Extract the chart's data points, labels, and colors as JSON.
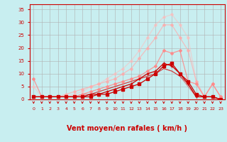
{
  "background_color": "#c8eef0",
  "grid_color": "#b0b0b0",
  "xlabel": "Vent moyen/en rafales ( km/h )",
  "xlabel_color": "#cc0000",
  "xlabel_fontsize": 7,
  "tick_color": "#cc0000",
  "xlim": [
    -0.5,
    23.5
  ],
  "ylim": [
    0,
    37
  ],
  "yticks": [
    0,
    5,
    10,
    15,
    20,
    25,
    30,
    35
  ],
  "xticks": [
    0,
    1,
    2,
    3,
    4,
    5,
    6,
    7,
    8,
    9,
    10,
    11,
    12,
    13,
    14,
    15,
    16,
    17,
    18,
    19,
    20,
    21,
    22,
    23
  ],
  "lines": [
    {
      "x": [
        0,
        1,
        2,
        3,
        4,
        5,
        6,
        7,
        8,
        9,
        10,
        11,
        12,
        13,
        14,
        15,
        16,
        17,
        18,
        19,
        20,
        21,
        22,
        23
      ],
      "y": [
        1,
        1,
        1,
        1,
        1,
        1,
        1,
        1,
        2,
        2,
        3,
        4,
        5,
        6,
        8,
        10,
        13,
        14,
        10,
        7,
        2,
        1,
        1,
        0
      ],
      "color": "#cc0000",
      "linewidth": 0.9,
      "marker": "s",
      "markersize": 2.5,
      "alpha": 1.0,
      "zorder": 5
    },
    {
      "x": [
        0,
        1,
        2,
        3,
        4,
        5,
        6,
        7,
        8,
        9,
        10,
        11,
        12,
        13,
        14,
        15,
        16,
        17,
        18,
        19,
        20,
        21,
        22,
        23
      ],
      "y": [
        1,
        1,
        1,
        1,
        1,
        1,
        1,
        2,
        2,
        3,
        4,
        5,
        6,
        8,
        10,
        11,
        14,
        13,
        10,
        6,
        1,
        1,
        1,
        0
      ],
      "color": "#cc0000",
      "linewidth": 0.9,
      "marker": "+",
      "markersize": 3,
      "alpha": 1.0,
      "zorder": 5
    },
    {
      "x": [
        0,
        1,
        2,
        3,
        4,
        5,
        6,
        7,
        8,
        9,
        10,
        11,
        12,
        13,
        14,
        15,
        16,
        17,
        18,
        19,
        20,
        21,
        22,
        23
      ],
      "y": [
        1,
        1,
        1,
        1,
        1,
        1,
        1,
        2,
        3,
        4,
        5,
        6,
        7,
        8,
        9,
        10,
        12,
        11,
        9,
        6,
        1,
        1,
        1,
        0
      ],
      "color": "#cc2222",
      "linewidth": 0.8,
      "marker": null,
      "markersize": 0,
      "alpha": 0.7,
      "zorder": 4
    },
    {
      "x": [
        0,
        1,
        2,
        3,
        4,
        5,
        6,
        7,
        8,
        9,
        10,
        11,
        12,
        13,
        14,
        15,
        16,
        17,
        18,
        19,
        20,
        21,
        22,
        23
      ],
      "y": [
        1,
        1,
        1,
        1,
        1,
        1,
        2,
        2,
        3,
        4,
        5,
        6,
        7,
        8,
        9,
        10,
        12,
        11,
        9,
        5,
        1,
        1,
        1,
        0
      ],
      "color": "#dd4444",
      "linewidth": 0.8,
      "marker": null,
      "markersize": 0,
      "alpha": 0.6,
      "zorder": 3
    },
    {
      "x": [
        0,
        1,
        2,
        3,
        4,
        5,
        6,
        7,
        8,
        9,
        10,
        11,
        12,
        13,
        14,
        15,
        16,
        17,
        18,
        19,
        20,
        21,
        22,
        23
      ],
      "y": [
        8,
        1,
        1,
        1,
        1,
        1,
        2,
        3,
        4,
        5,
        6,
        7,
        8,
        9,
        11,
        13,
        19,
        18,
        19,
        7,
        6,
        1,
        6,
        1
      ],
      "color": "#ff8888",
      "linewidth": 0.9,
      "marker": "D",
      "markersize": 2,
      "alpha": 0.85,
      "zorder": 4
    },
    {
      "x": [
        0,
        1,
        2,
        3,
        4,
        5,
        6,
        7,
        8,
        9,
        10,
        11,
        12,
        13,
        14,
        15,
        16,
        17,
        18,
        19,
        20,
        21,
        22,
        23
      ],
      "y": [
        1,
        1,
        1,
        1,
        2,
        3,
        4,
        5,
        6,
        7,
        8,
        10,
        12,
        16,
        20,
        24,
        29,
        29,
        24,
        19,
        7,
        1,
        6,
        1
      ],
      "color": "#ffaaaa",
      "linewidth": 0.9,
      "marker": "D",
      "markersize": 2,
      "alpha": 0.7,
      "zorder": 3
    },
    {
      "x": [
        0,
        1,
        2,
        3,
        4,
        5,
        6,
        7,
        8,
        9,
        10,
        11,
        12,
        13,
        14,
        15,
        16,
        17,
        18,
        19,
        20,
        21,
        22,
        23
      ],
      "y": [
        5,
        1,
        1,
        1,
        1,
        2,
        3,
        5,
        6,
        8,
        10,
        12,
        15,
        19,
        24,
        29,
        32,
        33,
        29,
        24,
        7,
        1,
        6,
        1
      ],
      "color": "#ffbbbb",
      "linewidth": 0.9,
      "marker": "D",
      "markersize": 2,
      "alpha": 0.55,
      "zorder": 2
    }
  ]
}
